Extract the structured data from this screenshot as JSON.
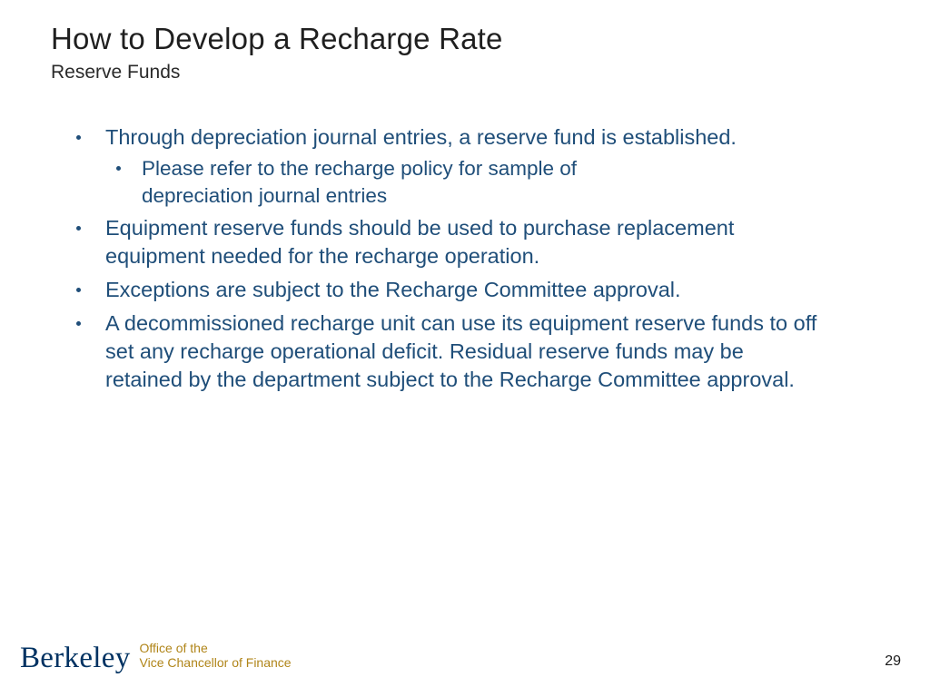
{
  "title": "How to Develop a Recharge Rate",
  "subtitle": "Reserve Funds",
  "colors": {
    "body_text": "#1f4e79",
    "title_text": "#1f1f1f",
    "brand_navy": "#003262",
    "brand_gold": "#b08519",
    "background": "#ffffff"
  },
  "bullets": [
    {
      "text": "Through depreciation journal entries, a reserve fund is established.",
      "sub": [
        "Please refer to the recharge policy for sample of depreciation journal entries"
      ]
    },
    {
      "text": "Equipment reserve funds should be used to purchase replacement equipment needed for the recharge operation."
    },
    {
      "text": "Exceptions are subject to the Recharge Committee approval."
    },
    {
      "text": "A decommissioned recharge unit can use its equipment reserve funds to off set any recharge operational deficit. Residual reserve funds may be retained by the department subject to the Recharge Committee approval."
    }
  ],
  "footer": {
    "brand": "Berkeley",
    "office_line1": "Office of the",
    "office_line2": "Vice Chancellor of Finance"
  },
  "page_number": "29"
}
